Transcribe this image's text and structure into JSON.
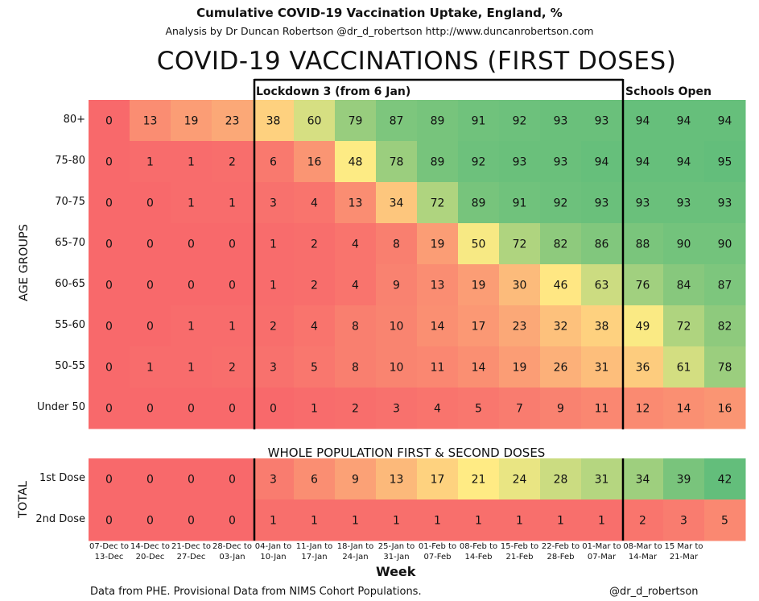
{
  "header": {
    "title": "Cumulative COVID-19 Vaccination Uptake, England, %",
    "subtitle": "Analysis by Dr Duncan Robertson @dr_d_robertson http://www.duncanrobertson.com",
    "big_title": "COVID-19 VACCINATIONS (FIRST DOSES)"
  },
  "annotations": {
    "lockdown": "Lockdown 3 (from 6 Jan)",
    "schools": "Schools Open"
  },
  "section2_title": "WHOLE POPULATION FIRST & SECOND DOSES",
  "axis": {
    "ylabel_top": "AGE GROUPS",
    "ylabel_bottom": "TOTAL",
    "xlabel": "Week"
  },
  "footer": {
    "left": "Data from PHE. Provisional Data from NIMS Cohort Populations.",
    "right": "@dr_d_robertson"
  },
  "colors": {
    "low": "#f8696b",
    "mid": "#ffeb84",
    "high": "#63be7b",
    "border": "#000000"
  },
  "chart_data": [
    {
      "type": "heatmap",
      "title": "COVID-19 VACCINATIONS (FIRST DOSES)",
      "ylabel": "AGE GROUPS",
      "xlabel": "Week",
      "x": [
        [
          "07-Dec to",
          "13-Dec"
        ],
        [
          "14-Dec to",
          "20-Dec"
        ],
        [
          "21-Dec to",
          "27-Dec"
        ],
        [
          "28-Dec to",
          "03-Jan"
        ],
        [
          "04-Jan to",
          "10-Jan"
        ],
        [
          "11-Jan to",
          "17-Jan"
        ],
        [
          "18-Jan to",
          "24-Jan"
        ],
        [
          "25-Jan to",
          "31-Jan"
        ],
        [
          "01-Feb to",
          "07-Feb"
        ],
        [
          "08-Feb to",
          "14-Feb"
        ],
        [
          "15-Feb to",
          "21-Feb"
        ],
        [
          "22-Feb to",
          "28-Feb"
        ],
        [
          "01-Mar to",
          "07-Mar"
        ],
        [
          "08-Mar to",
          "14-Mar"
        ],
        [
          "15 Mar to",
          "21-Mar"
        ],
        [
          "",
          ""
        ]
      ],
      "rows": [
        "80+",
        "75-80",
        "70-75",
        "65-70",
        "60-65",
        "55-60",
        "50-55",
        "Under 50"
      ],
      "values": [
        [
          0,
          13,
          19,
          23,
          38,
          60,
          79,
          87,
          89,
          91,
          92,
          93,
          93,
          94,
          94,
          94
        ],
        [
          0,
          1,
          1,
          2,
          6,
          16,
          48,
          78,
          89,
          92,
          93,
          93,
          94,
          94,
          94,
          95
        ],
        [
          0,
          0,
          1,
          1,
          3,
          4,
          13,
          34,
          72,
          89,
          91,
          92,
          93,
          93,
          93,
          93
        ],
        [
          0,
          0,
          0,
          0,
          1,
          2,
          4,
          8,
          19,
          50,
          72,
          82,
          86,
          88,
          90,
          90
        ],
        [
          0,
          0,
          0,
          0,
          1,
          2,
          4,
          9,
          13,
          19,
          30,
          46,
          63,
          76,
          84,
          87
        ],
        [
          0,
          0,
          1,
          1,
          2,
          4,
          8,
          10,
          14,
          17,
          23,
          32,
          38,
          49,
          72,
          82
        ],
        [
          0,
          1,
          1,
          2,
          3,
          5,
          8,
          10,
          11,
          14,
          19,
          26,
          31,
          36,
          61,
          78
        ],
        [
          0,
          0,
          0,
          0,
          0,
          1,
          2,
          3,
          4,
          5,
          7,
          9,
          11,
          12,
          14,
          16
        ]
      ]
    },
    {
      "type": "heatmap",
      "title": "WHOLE POPULATION FIRST & SECOND DOSES",
      "ylabel": "TOTAL",
      "rows": [
        "1st Dose",
        "2nd Dose"
      ],
      "values": [
        [
          0,
          0,
          0,
          0,
          3,
          6,
          9,
          13,
          17,
          21,
          24,
          28,
          31,
          34,
          39,
          42
        ],
        [
          0,
          0,
          0,
          0,
          1,
          1,
          1,
          1,
          1,
          1,
          1,
          1,
          1,
          2,
          3,
          5
        ]
      ]
    }
  ]
}
